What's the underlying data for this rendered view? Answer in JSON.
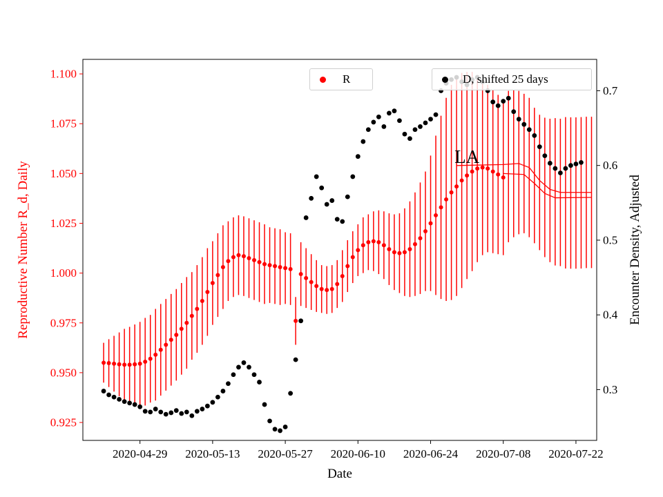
{
  "chart_data": {
    "type": "scatter",
    "title": "",
    "xlabel": "Date",
    "x": {
      "domain": [
        "2020-04-18",
        "2020-07-26"
      ],
      "ticks": [
        "2020-04-29",
        "2020-05-13",
        "2020-05-27",
        "2020-06-10",
        "2020-06-24",
        "2020-07-08",
        "2020-07-22"
      ]
    },
    "y_left": {
      "label": "Reproductive Number R_d, Daily",
      "color": "#ff0000",
      "lim": [
        0.916,
        1.1073
      ],
      "ticks": [
        "0.925",
        "0.950",
        "0.975",
        "1.000",
        "1.025",
        "1.050",
        "1.075",
        "1.100"
      ]
    },
    "y_right": {
      "label": "Encounter Density, Adjusted",
      "color": "#000000",
      "lim": [
        0.232,
        0.742
      ],
      "ticks": [
        "0.3",
        "0.4",
        "0.5",
        "0.6",
        "0.7"
      ]
    },
    "legend": [
      {
        "label": "R",
        "color": "#ff0000"
      },
      {
        "label": "D, shifted 25 days",
        "color": "#000000"
      }
    ],
    "annotation": {
      "text": "LA",
      "x": "2020-07-01",
      "y": 1.0585,
      "color": "#000000"
    },
    "series": [
      {
        "name": "R",
        "axis": "left",
        "color": "#ff0000",
        "style": "errorbar-scatter",
        "points": [
          [
            "2020-04-22",
            0.955,
            0.01
          ],
          [
            "2020-04-23",
            0.9548,
            0.012
          ],
          [
            "2020-04-24",
            0.9545,
            0.014
          ],
          [
            "2020-04-25",
            0.9542,
            0.016
          ],
          [
            "2020-04-26",
            0.954,
            0.018
          ],
          [
            "2020-04-27",
            0.954,
            0.019
          ],
          [
            "2020-04-28",
            0.9542,
            0.02
          ],
          [
            "2020-04-29",
            0.9545,
            0.021
          ],
          [
            "2020-04-30",
            0.9555,
            0.022
          ],
          [
            "2020-05-01",
            0.957,
            0.022
          ],
          [
            "2020-05-02",
            0.959,
            0.023
          ],
          [
            "2020-05-03",
            0.9615,
            0.023
          ],
          [
            "2020-05-04",
            0.964,
            0.023
          ],
          [
            "2020-05-05",
            0.9665,
            0.023
          ],
          [
            "2020-05-06",
            0.969,
            0.023
          ],
          [
            "2020-05-07",
            0.972,
            0.023
          ],
          [
            "2020-05-08",
            0.975,
            0.023
          ],
          [
            "2020-05-09",
            0.9785,
            0.022
          ],
          [
            "2020-05-10",
            0.982,
            0.022
          ],
          [
            "2020-05-11",
            0.986,
            0.022
          ],
          [
            "2020-05-12",
            0.9905,
            0.022
          ],
          [
            "2020-05-13",
            0.995,
            0.021
          ],
          [
            "2020-05-14",
            0.999,
            0.021
          ],
          [
            "2020-05-15",
            1.003,
            0.021
          ],
          [
            "2020-05-16",
            1.006,
            0.02
          ],
          [
            "2020-05-17",
            1.008,
            0.02
          ],
          [
            "2020-05-18",
            1.009,
            0.02
          ],
          [
            "2020-05-19",
            1.0085,
            0.02
          ],
          [
            "2020-05-20",
            1.0075,
            0.02
          ],
          [
            "2020-05-21",
            1.0065,
            0.02
          ],
          [
            "2020-05-22",
            1.0055,
            0.02
          ],
          [
            "2020-05-23",
            1.0045,
            0.02
          ],
          [
            "2020-05-24",
            1.004,
            0.019
          ],
          [
            "2020-05-25",
            1.0035,
            0.019
          ],
          [
            "2020-05-26",
            1.003,
            0.019
          ],
          [
            "2020-05-27",
            1.0025,
            0.018
          ],
          [
            "2020-05-28",
            1.002,
            0.018
          ],
          [
            "2020-05-29",
            0.976,
            0.012
          ],
          [
            "2020-05-30",
            0.9995,
            0.016
          ],
          [
            "2020-05-31",
            0.9975,
            0.015
          ],
          [
            "2020-06-01",
            0.9955,
            0.014
          ],
          [
            "2020-06-02",
            0.9935,
            0.013
          ],
          [
            "2020-06-03",
            0.992,
            0.012
          ],
          [
            "2020-06-04",
            0.9915,
            0.012
          ],
          [
            "2020-06-05",
            0.992,
            0.012
          ],
          [
            "2020-06-06",
            0.9945,
            0.012
          ],
          [
            "2020-06-07",
            0.9985,
            0.013
          ],
          [
            "2020-06-08",
            1.0035,
            0.013
          ],
          [
            "2020-06-09",
            1.008,
            0.013
          ],
          [
            "2020-06-10",
            1.0115,
            0.013
          ],
          [
            "2020-06-11",
            1.014,
            0.014
          ],
          [
            "2020-06-12",
            1.0155,
            0.014
          ],
          [
            "2020-06-13",
            1.016,
            0.015
          ],
          [
            "2020-06-14",
            1.0155,
            0.016
          ],
          [
            "2020-06-15",
            1.014,
            0.017
          ],
          [
            "2020-06-16",
            1.012,
            0.018
          ],
          [
            "2020-06-17",
            1.0105,
            0.019
          ],
          [
            "2020-06-18",
            1.01,
            0.02
          ],
          [
            "2020-06-19",
            1.0105,
            0.022
          ],
          [
            "2020-06-20",
            1.012,
            0.024
          ],
          [
            "2020-06-21",
            1.0145,
            0.026
          ],
          [
            "2020-06-22",
            1.0175,
            0.028
          ],
          [
            "2020-06-23",
            1.021,
            0.03
          ],
          [
            "2020-06-24",
            1.025,
            0.034
          ],
          [
            "2020-06-25",
            1.029,
            0.04
          ],
          [
            "2020-06-26",
            1.033,
            0.046
          ],
          [
            "2020-06-27",
            1.037,
            0.051
          ],
          [
            "2020-06-28",
            1.0405,
            0.054
          ],
          [
            "2020-06-29",
            1.0435,
            0.055
          ],
          [
            "2020-06-30",
            1.0465,
            0.054
          ],
          [
            "2020-07-01",
            1.049,
            0.052
          ],
          [
            "2020-07-02",
            1.051,
            0.05
          ],
          [
            "2020-07-03",
            1.0525,
            0.047
          ],
          [
            "2020-07-04",
            1.053,
            0.044
          ],
          [
            "2020-07-05",
            1.0525,
            0.042
          ],
          [
            "2020-07-06",
            1.051,
            0.041
          ],
          [
            "2020-07-07",
            1.0495,
            0.04
          ],
          [
            "2020-07-08",
            1.048,
            0.039
          ],
          [
            "2020-07-09",
            1.0535,
            0.038,
            0
          ],
          [
            "2020-07-10",
            1.055,
            0.037,
            0
          ],
          [
            "2020-07-11",
            1.0555,
            0.036,
            0
          ],
          [
            "2020-07-12",
            1.055,
            0.035,
            0
          ],
          [
            "2020-07-13",
            1.053,
            0.035,
            0
          ],
          [
            "2020-07-14",
            1.049,
            0.034,
            0
          ],
          [
            "2020-07-15",
            1.0455,
            0.034,
            0
          ],
          [
            "2020-07-16",
            1.043,
            0.035,
            0
          ],
          [
            "2020-07-17",
            1.0415,
            0.036,
            0
          ],
          [
            "2020-07-18",
            1.0408,
            0.037,
            0
          ],
          [
            "2020-07-19",
            1.0405,
            0.037,
            0
          ],
          [
            "2020-07-20",
            1.0403,
            0.038,
            0
          ],
          [
            "2020-07-21",
            1.0402,
            0.038,
            0
          ],
          [
            "2020-07-22",
            1.0402,
            0.038,
            0
          ],
          [
            "2020-07-23",
            1.0403,
            0.038,
            0
          ],
          [
            "2020-07-24",
            1.0405,
            0.038,
            0
          ],
          [
            "2020-07-25",
            1.0405,
            0.038,
            0
          ]
        ]
      },
      {
        "name": "D, shifted 25 days",
        "axis": "right",
        "color": "#000000",
        "style": "scatter",
        "points": [
          [
            "2020-04-22",
            0.298
          ],
          [
            "2020-04-23",
            0.293
          ],
          [
            "2020-04-24",
            0.29
          ],
          [
            "2020-04-25",
            0.287
          ],
          [
            "2020-04-26",
            0.284
          ],
          [
            "2020-04-27",
            0.282
          ],
          [
            "2020-04-28",
            0.28
          ],
          [
            "2020-04-29",
            0.277
          ],
          [
            "2020-04-30",
            0.271
          ],
          [
            "2020-05-01",
            0.27
          ],
          [
            "2020-05-02",
            0.274
          ],
          [
            "2020-05-03",
            0.27
          ],
          [
            "2020-05-04",
            0.267
          ],
          [
            "2020-05-05",
            0.269
          ],
          [
            "2020-05-06",
            0.272
          ],
          [
            "2020-05-07",
            0.268
          ],
          [
            "2020-05-08",
            0.27
          ],
          [
            "2020-05-09",
            0.265
          ],
          [
            "2020-05-10",
            0.271
          ],
          [
            "2020-05-11",
            0.274
          ],
          [
            "2020-05-12",
            0.278
          ],
          [
            "2020-05-13",
            0.283
          ],
          [
            "2020-05-14",
            0.29
          ],
          [
            "2020-05-15",
            0.298
          ],
          [
            "2020-05-16",
            0.308
          ],
          [
            "2020-05-17",
            0.32
          ],
          [
            "2020-05-18",
            0.33
          ],
          [
            "2020-05-19",
            0.336
          ],
          [
            "2020-05-20",
            0.33
          ],
          [
            "2020-05-21",
            0.32
          ],
          [
            "2020-05-22",
            0.31
          ],
          [
            "2020-05-23",
            0.28
          ],
          [
            "2020-05-24",
            0.258
          ],
          [
            "2020-05-25",
            0.247
          ],
          [
            "2020-05-26",
            0.245
          ],
          [
            "2020-05-27",
            0.25
          ],
          [
            "2020-05-28",
            0.295
          ],
          [
            "2020-05-29",
            0.34
          ],
          [
            "2020-05-30",
            0.392
          ],
          [
            "2020-05-31",
            0.53
          ],
          [
            "2020-06-01",
            0.556
          ],
          [
            "2020-06-02",
            0.585
          ],
          [
            "2020-06-03",
            0.57
          ],
          [
            "2020-06-04",
            0.548
          ],
          [
            "2020-06-05",
            0.553
          ],
          [
            "2020-06-06",
            0.528
          ],
          [
            "2020-06-07",
            0.525
          ],
          [
            "2020-06-08",
            0.558
          ],
          [
            "2020-06-09",
            0.585
          ],
          [
            "2020-06-10",
            0.612
          ],
          [
            "2020-06-11",
            0.632
          ],
          [
            "2020-06-12",
            0.648
          ],
          [
            "2020-06-13",
            0.658
          ],
          [
            "2020-06-14",
            0.665
          ],
          [
            "2020-06-15",
            0.652
          ],
          [
            "2020-06-16",
            0.67
          ],
          [
            "2020-06-17",
            0.673
          ],
          [
            "2020-06-18",
            0.66
          ],
          [
            "2020-06-19",
            0.642
          ],
          [
            "2020-06-20",
            0.636
          ],
          [
            "2020-06-21",
            0.648
          ],
          [
            "2020-06-22",
            0.652
          ],
          [
            "2020-06-23",
            0.657
          ],
          [
            "2020-06-24",
            0.662
          ],
          [
            "2020-06-25",
            0.668
          ],
          [
            "2020-06-26",
            0.7
          ],
          [
            "2020-06-27",
            0.71
          ],
          [
            "2020-06-28",
            0.715
          ],
          [
            "2020-06-29",
            0.718
          ],
          [
            "2020-06-30",
            0.712
          ],
          [
            "2020-07-01",
            0.708
          ],
          [
            "2020-07-02",
            0.715
          ],
          [
            "2020-07-03",
            0.718
          ],
          [
            "2020-07-04",
            0.712
          ],
          [
            "2020-07-05",
            0.7
          ],
          [
            "2020-07-06",
            0.685
          ],
          [
            "2020-07-07",
            0.68
          ],
          [
            "2020-07-08",
            0.686
          ],
          [
            "2020-07-09",
            0.69
          ],
          [
            "2020-07-10",
            0.672
          ],
          [
            "2020-07-11",
            0.662
          ],
          [
            "2020-07-12",
            0.655
          ],
          [
            "2020-07-13",
            0.648
          ],
          [
            "2020-07-14",
            0.64
          ],
          [
            "2020-07-15",
            0.625
          ],
          [
            "2020-07-16",
            0.613
          ],
          [
            "2020-07-17",
            0.603
          ],
          [
            "2020-07-18",
            0.596
          ],
          [
            "2020-07-19",
            0.59
          ],
          [
            "2020-07-20",
            0.596
          ],
          [
            "2020-07-21",
            0.6
          ],
          [
            "2020-07-22",
            0.602
          ],
          [
            "2020-07-23",
            0.604
          ]
        ]
      }
    ],
    "fit_lines": [
      {
        "axis": "left",
        "color": "#ff0000",
        "points": [
          [
            "2020-06-29",
            1.054
          ],
          [
            "2020-07-08",
            1.0545
          ],
          [
            "2020-07-11",
            1.055
          ],
          [
            "2020-07-13",
            1.053
          ],
          [
            "2020-07-15",
            1.0465
          ],
          [
            "2020-07-17",
            1.042
          ],
          [
            "2020-07-19",
            1.0405
          ],
          [
            "2020-07-25",
            1.0405
          ]
        ]
      },
      {
        "axis": "left",
        "color": "#ff0000",
        "points": [
          [
            "2020-07-08",
            1.05
          ],
          [
            "2020-07-12",
            1.0495
          ],
          [
            "2020-07-14",
            1.045
          ],
          [
            "2020-07-16",
            1.04
          ],
          [
            "2020-07-18",
            1.0378
          ],
          [
            "2020-07-25",
            1.038
          ]
        ]
      }
    ]
  }
}
